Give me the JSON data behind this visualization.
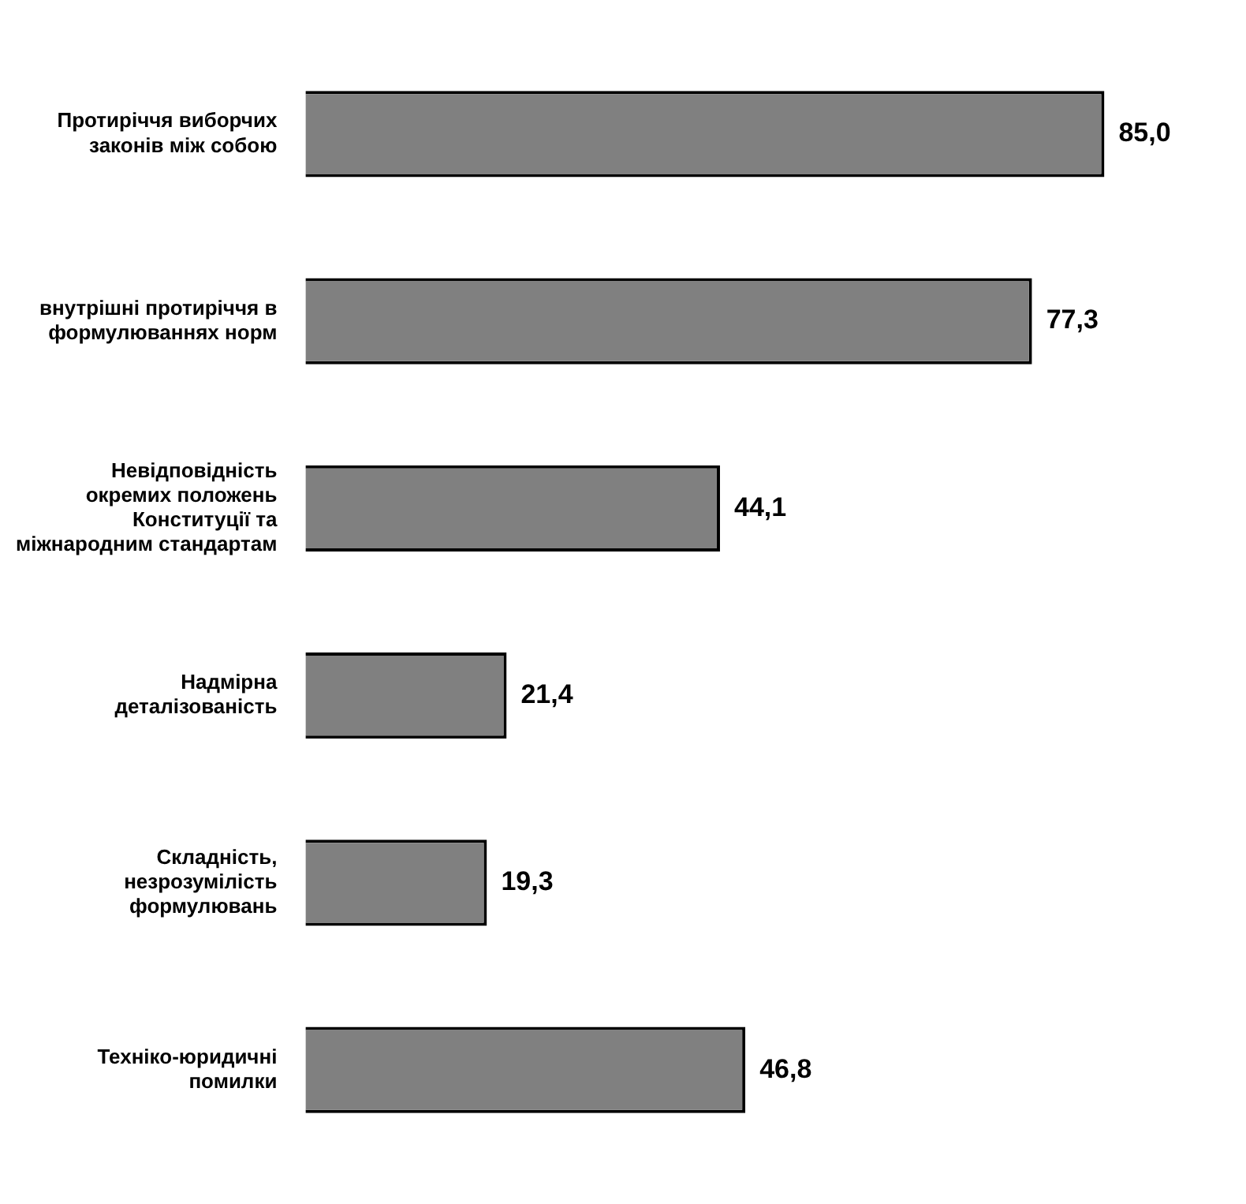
{
  "chart_data": {
    "type": "bar",
    "orientation": "horizontal",
    "tick_labels": "y",
    "value_labels": [
      "85,0",
      "77,3",
      "44,1",
      "21,4",
      "19,3",
      "46,8"
    ],
    "categories": [
      "Протиріччя виборчих законів між собою",
      "внутрішні протиріччя в формулюваннях норм",
      "Невідповідність окремих положень Конституції та міжнародним стандартам",
      "Надмірна деталізованість",
      "Складність, незрозумілість формулювань",
      "Техніко-юридичні помилки"
    ],
    "values": [
      85.0,
      77.3,
      44.1,
      21.4,
      19.3,
      46.8
    ],
    "color": "#808080"
  }
}
